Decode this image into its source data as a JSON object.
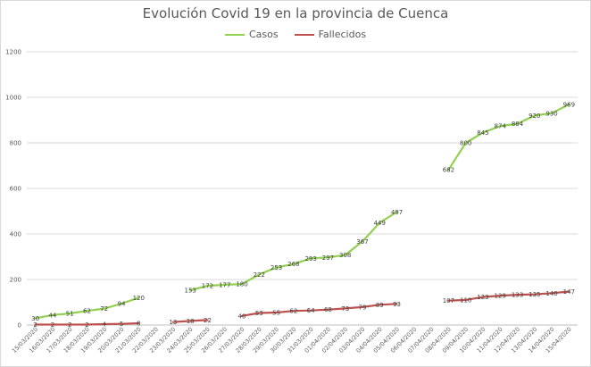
{
  "chart_data": {
    "type": "line",
    "title": "Evolución Covid 19 en la provincia de Cuenca",
    "ylim": [
      0,
      1200
    ],
    "yticks": [
      0,
      200,
      400,
      600,
      800,
      1000,
      1200
    ],
    "grid": true,
    "legend_position": "top",
    "categories": [
      "15/03/2020",
      "16/03/2020",
      "17/03/2020",
      "18/03/2020",
      "19/03/2020",
      "20/03/2020",
      "21/03/2020",
      "22/03/2020",
      "23/03/2020",
      "24/03/2020",
      "25/03/2020",
      "26/03/2020",
      "27/03/2020",
      "28/03/2020",
      "29/03/2020",
      "30/03/2020",
      "31/03/2020",
      "01/04/2020",
      "02/04/2020",
      "03/04/2020",
      "04/04/2020",
      "05/04/2020",
      "06/04/2020",
      "07/04/2020",
      "08/04/2020",
      "09/04/2020",
      "10/04/2020",
      "11/04/2020",
      "12/04/2020",
      "13/04/2020",
      "14/04/2020",
      "15/04/2020"
    ],
    "series": [
      {
        "name": "Casos",
        "color": "#92d050",
        "values": [
          30,
          44,
          51,
          62,
          72,
          94,
          120,
          null,
          null,
          153,
          172,
          177,
          180,
          222,
          253,
          268,
          293,
          297,
          308,
          367,
          449,
          497,
          null,
          null,
          682,
          800,
          845,
          874,
          884,
          920,
          930,
          969
        ]
      },
      {
        "name": "Fallecidos",
        "color": "#c0504d",
        "values": [
          2,
          2,
          2,
          2,
          4,
          5,
          8,
          null,
          13,
          18,
          22,
          null,
          40,
          53,
          55,
          62,
          64,
          68,
          73,
          79,
          89,
          93,
          null,
          null,
          107,
          110,
          123,
          129,
          133,
          135,
          140,
          147
        ]
      }
    ]
  }
}
